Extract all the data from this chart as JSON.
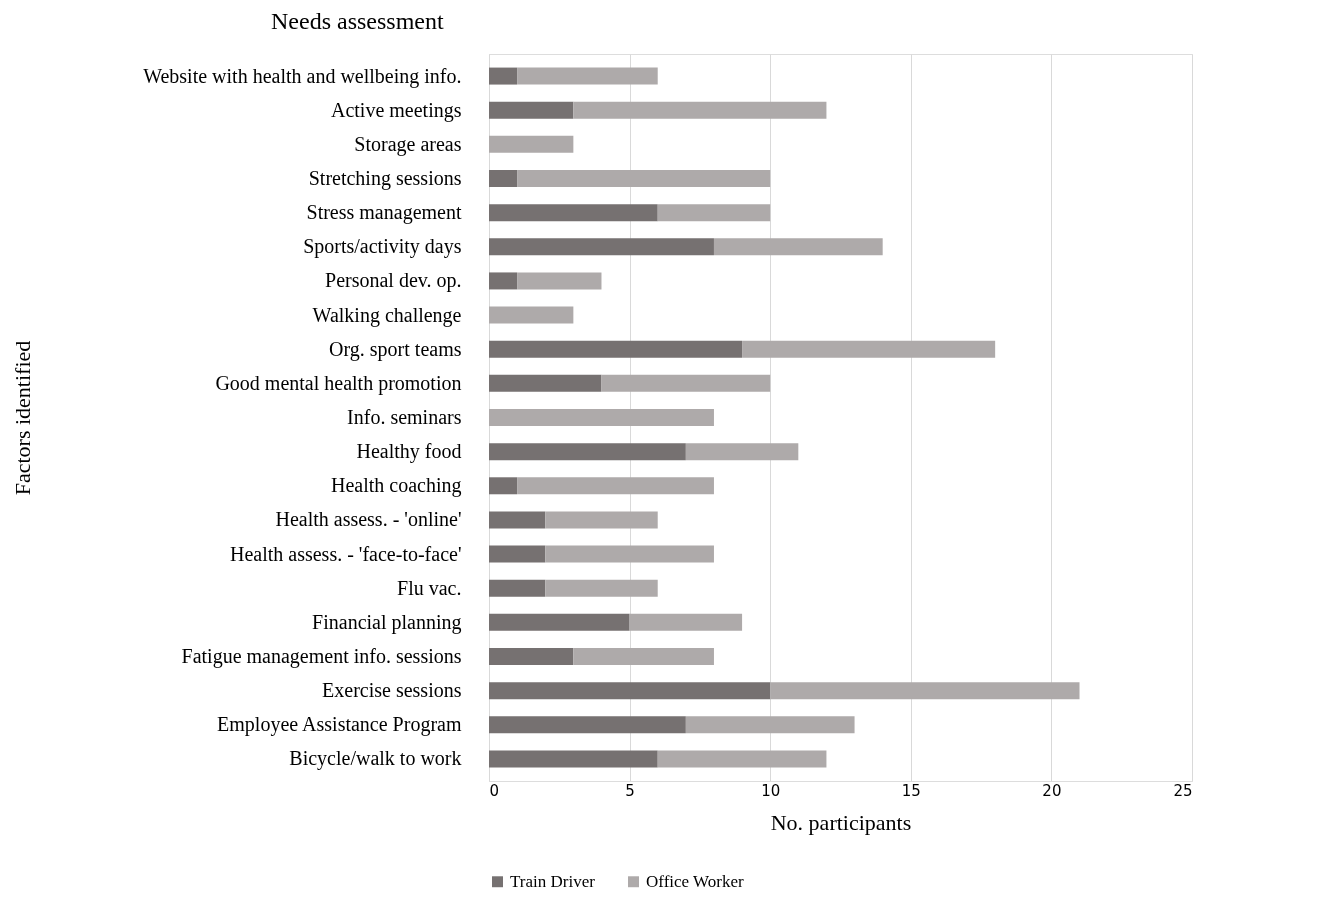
{
  "chart_data": {
    "type": "bar",
    "orientation": "horizontal",
    "stacked": true,
    "title": "Needs assessment",
    "xlabel": "No. participants",
    "ylabel": "Factors  identified",
    "categories": [
      "Website with health and wellbeing info.",
      "Active meetings",
      "Storage areas",
      "Stretching sessions",
      "Stress management",
      "Sports/activity days",
      "Personal dev. op.",
      "Walking challenge",
      "Org. sport teams",
      "Good mental health promotion",
      "Info. seminars",
      "Healthy food",
      "Health coaching",
      "Health assess. - 'online'",
      "Health assess. - 'face-to-face'",
      "Flu vac.",
      "Financial planning",
      "Fatigue management info. sessions",
      "Exercise sessions",
      "Employee Assistance Program",
      "Bicycle/walk to work"
    ],
    "series": [
      {
        "name": "Train Driver",
        "color": "#767171",
        "values": [
          1,
          3,
          0,
          1,
          6,
          8,
          1,
          0,
          9,
          4,
          0,
          7,
          1,
          2,
          2,
          2,
          5,
          3,
          10,
          7,
          6
        ]
      },
      {
        "name": "Office Worker",
        "color": "#aeaaaa",
        "values": [
          5,
          9,
          3,
          9,
          4,
          6,
          3,
          3,
          9,
          6,
          8,
          4,
          7,
          4,
          6,
          4,
          4,
          5,
          11,
          6,
          6
        ]
      }
    ],
    "xlim": [
      0,
      25
    ],
    "xticks": [
      0,
      5,
      10,
      15,
      20,
      25
    ],
    "grid": "x",
    "legend": "bottom"
  }
}
